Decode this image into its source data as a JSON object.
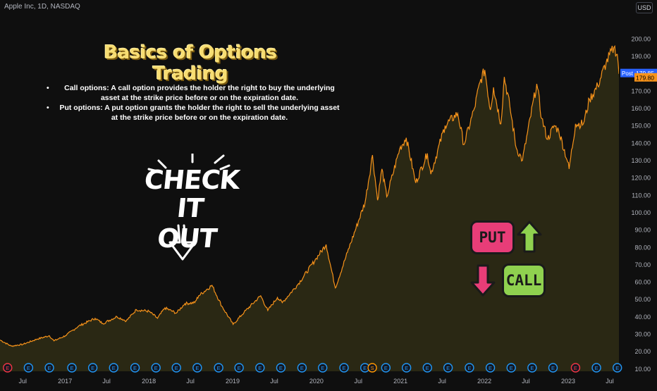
{
  "header": {
    "symbol": "Apple Inc, 1D, NASDAQ",
    "currency": "USD"
  },
  "annotation": {
    "title": "Basics of Options Trading",
    "bullets": [
      "Call options: A call option provides the holder the right to buy the underlying asset at the strike price before or on the expiration date.",
      "Put options: A put option grants the holder the right to sell the underlying asset at the strike price before or on the expiration date."
    ],
    "check_line1": "CHECK",
    "check_line2": "IT OUT",
    "put_label": "PUT",
    "call_label": "CALL"
  },
  "price_labels": {
    "post_tag": "Post",
    "post_price": "179.85",
    "last_price": "179.80"
  },
  "colors": {
    "background": "#0f0f0f",
    "line": "#f7931a",
    "fill": "#2a2814",
    "post_tag": "#2962ff",
    "last_tag": "#f7931a",
    "put": "#e83d78",
    "call": "#8fd14f",
    "title": "#f7dd72",
    "earnings": "#2196f3",
    "earnings_red": "#f23645",
    "dividend": "#ff9800"
  },
  "chart_data": {
    "type": "area",
    "title": "",
    "ylabel": "",
    "ylim": [
      8.5,
      215
    ],
    "y_ticks": [
      10,
      20,
      30,
      40,
      50,
      60,
      70,
      80,
      90,
      100,
      110,
      120,
      130,
      140,
      150,
      160,
      170,
      180,
      190,
      200
    ],
    "x_ticks": [
      "Jul",
      "2017",
      "Jul",
      "2018",
      "Jul",
      "2019",
      "Jul",
      "2020",
      "Jul",
      "2021",
      "Jul",
      "2022",
      "Jul",
      "2023",
      "Jul"
    ],
    "x_tick_dates": [
      "2016-07-01",
      "2017-01-01",
      "2017-07-01",
      "2018-01-01",
      "2018-07-01",
      "2019-01-01",
      "2019-07-01",
      "2020-01-01",
      "2020-07-01",
      "2021-01-01",
      "2021-07-01",
      "2022-01-01",
      "2022-07-01",
      "2023-01-01",
      "2023-07-01"
    ],
    "x_range": [
      "2016-03-24",
      "2023-08-10"
    ],
    "series": [
      {
        "points": [
          [
            "2016-03-24",
            26.5
          ],
          [
            "2016-05-12",
            23.0
          ],
          [
            "2016-07-01",
            24.0
          ],
          [
            "2016-09-01",
            27.0
          ],
          [
            "2016-10-25",
            29.0
          ],
          [
            "2016-11-14",
            26.0
          ],
          [
            "2017-01-03",
            29.0
          ],
          [
            "2017-03-01",
            34.5
          ],
          [
            "2017-05-12",
            39.0
          ],
          [
            "2017-06-15",
            36.0
          ],
          [
            "2017-08-15",
            40.0
          ],
          [
            "2017-09-25",
            37.5
          ],
          [
            "2017-11-08",
            44.0
          ],
          [
            "2018-01-02",
            43.0
          ],
          [
            "2018-02-08",
            39.0
          ],
          [
            "2018-03-12",
            45.0
          ],
          [
            "2018-05-01",
            42.0
          ],
          [
            "2018-06-07",
            47.5
          ],
          [
            "2018-07-20",
            48.0
          ],
          [
            "2018-08-06",
            52.0
          ],
          [
            "2018-10-03",
            58.0
          ],
          [
            "2018-11-15",
            46.0
          ],
          [
            "2019-01-03",
            35.5
          ],
          [
            "2019-02-20",
            42.5
          ],
          [
            "2019-05-03",
            52.0
          ],
          [
            "2019-06-03",
            43.5
          ],
          [
            "2019-07-15",
            51.0
          ],
          [
            "2019-08-05",
            48.0
          ],
          [
            "2019-10-15",
            59.0
          ],
          [
            "2019-12-31",
            73.5
          ],
          [
            "2020-02-12",
            81.5
          ],
          [
            "2020-03-23",
            56.5
          ],
          [
            "2020-05-15",
            77.0
          ],
          [
            "2020-07-31",
            106.0
          ],
          [
            "2020-09-01",
            133.0
          ],
          [
            "2020-09-23",
            107.0
          ],
          [
            "2020-10-12",
            125.0
          ],
          [
            "2020-11-02",
            109.0
          ],
          [
            "2020-12-28",
            136.5
          ],
          [
            "2021-01-26",
            143.0
          ],
          [
            "2021-03-08",
            117.0
          ],
          [
            "2021-04-28",
            134.0
          ],
          [
            "2021-05-13",
            122.0
          ],
          [
            "2021-07-14",
            150.0
          ],
          [
            "2021-09-07",
            157.0
          ],
          [
            "2021-10-04",
            139.0
          ],
          [
            "2021-11-19",
            160.0
          ],
          [
            "2021-12-13",
            175.0
          ],
          [
            "2022-01-03",
            182.0
          ],
          [
            "2022-01-27",
            159.0
          ],
          [
            "2022-02-10",
            172.0
          ],
          [
            "2022-03-14",
            151.0
          ],
          [
            "2022-03-29",
            178.0
          ],
          [
            "2022-04-22",
            161.0
          ],
          [
            "2022-05-20",
            137.0
          ],
          [
            "2022-06-16",
            130.0
          ],
          [
            "2022-08-17",
            174.0
          ],
          [
            "2022-09-08",
            154.0
          ],
          [
            "2022-10-03",
            142.0
          ],
          [
            "2022-11-01",
            150.0
          ],
          [
            "2022-11-21",
            147.0
          ],
          [
            "2022-12-30",
            129.0
          ],
          [
            "2023-01-05",
            125.0
          ],
          [
            "2023-02-02",
            151.0
          ],
          [
            "2023-03-08",
            151.0
          ],
          [
            "2023-04-04",
            165.0
          ],
          [
            "2023-05-10",
            173.0
          ],
          [
            "2023-06-15",
            186.0
          ],
          [
            "2023-07-19",
            195.0
          ],
          [
            "2023-08-03",
            191.0
          ],
          [
            "2023-08-10",
            179.8
          ]
        ]
      }
    ],
    "events": {
      "row_y_value": "events",
      "earnings": [
        "2016-04-26",
        "2016-07-26",
        "2016-10-25",
        "2017-01-31",
        "2017-05-02",
        "2017-08-01",
        "2017-11-02",
        "2018-02-01",
        "2018-05-01",
        "2018-07-31",
        "2018-11-01",
        "2019-01-29",
        "2019-04-30",
        "2019-07-30",
        "2019-10-30",
        "2020-01-28",
        "2020-04-30",
        "2020-07-30",
        "2020-10-29",
        "2021-01-27",
        "2021-04-28",
        "2021-07-27",
        "2021-10-28",
        "2022-01-27",
        "2022-04-28",
        "2022-07-28",
        "2022-10-27",
        "2023-02-02",
        "2023-05-04",
        "2023-08-03"
      ],
      "earnings_red": [
        "2016-04-26",
        "2023-02-02"
      ],
      "split": "2020-08-31"
    }
  }
}
